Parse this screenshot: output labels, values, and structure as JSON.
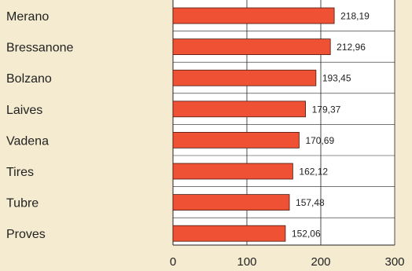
{
  "chart_data": {
    "type": "bar",
    "orientation": "horizontal",
    "title": "",
    "xlabel": "",
    "ylabel": "",
    "categories": [
      "Merano",
      "Bressanone",
      "Bolzano",
      "Laives",
      "Vadena",
      "Tires",
      "Tubre",
      "Proves"
    ],
    "values": [
      218.19,
      212.96,
      193.45,
      179.37,
      170.69,
      162.12,
      157.48,
      152.06
    ],
    "value_labels": [
      "218,19",
      "212,96",
      "193,45",
      "179,37",
      "170,69",
      "162,12",
      "157,48",
      "152,06"
    ],
    "xlim": [
      0,
      300
    ],
    "x_ticks": [
      0,
      100,
      200,
      300
    ],
    "x_tick_labels": [
      "0",
      "100",
      "200",
      "300"
    ],
    "grid": "vertical",
    "legend": "none"
  },
  "colors": {
    "background": "#f4ebd0",
    "plot_background": "#ffffff",
    "bar_fill": "#ef5135",
    "bar_stroke": "#4a1a10",
    "grid": "#222222",
    "text": "#222222"
  }
}
